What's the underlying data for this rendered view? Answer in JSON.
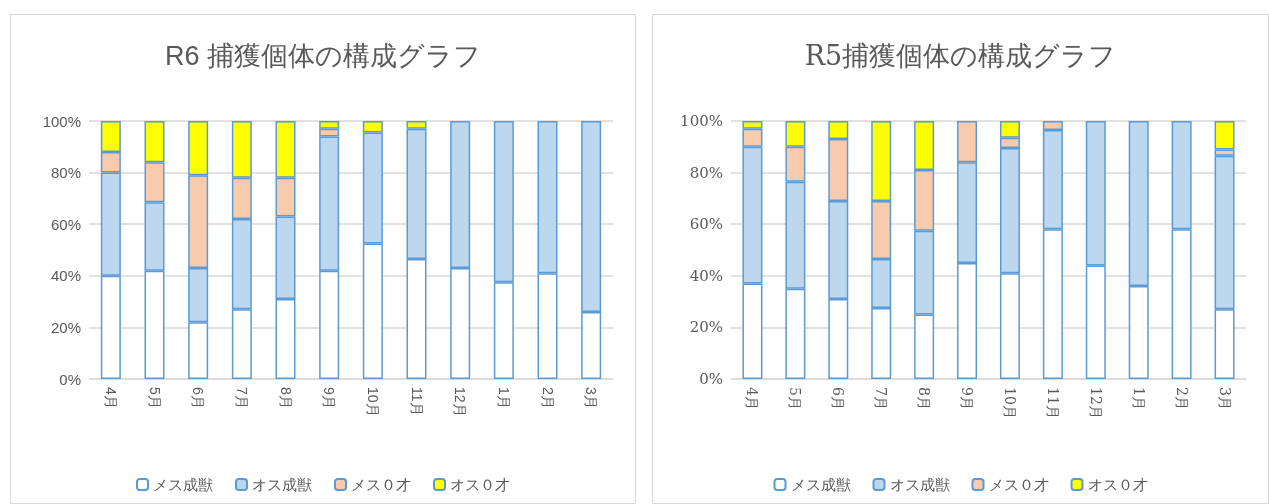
{
  "chart_data": [
    {
      "type": "bar",
      "title": "R6 捕獲個体の構成グラフ",
      "stacked": true,
      "grid": "y",
      "legend": "bottom",
      "categories": [
        "4月",
        "5月",
        "6月",
        "7月",
        "8月",
        "9月",
        "10月",
        "11月",
        "12月",
        "1月",
        "2月",
        "3月"
      ],
      "ylim": [
        0,
        100
      ],
      "yticks": [
        {
          "value": 0,
          "label": "0%"
        },
        {
          "value": 20,
          "label": "20%"
        },
        {
          "value": 40,
          "label": "40%"
        },
        {
          "value": 60,
          "label": "60%"
        },
        {
          "value": 80,
          "label": "80%"
        },
        {
          "value": 100,
          "label": "100%"
        }
      ],
      "series": [
        {
          "name": "メス成獣",
          "color": "#ffffff",
          "values": [
            40,
            42,
            22,
            27,
            31,
            42,
            52.5,
            46.5,
            43,
            37.5,
            41,
            26
          ]
        },
        {
          "name": "オス成獣",
          "color": "#bdd7ee",
          "values": [
            40,
            26.5,
            21,
            35,
            32,
            52,
            43,
            50.5,
            57,
            62.5,
            59,
            74
          ]
        },
        {
          "name": "メス０才",
          "color": "#f8cbad",
          "values": [
            8,
            15.5,
            36,
            16,
            15,
            3,
            0,
            0,
            0,
            0,
            0,
            0
          ]
        },
        {
          "name": "オス０才",
          "color": "#ffff00",
          "values": [
            12,
            16,
            21,
            22,
            22,
            3,
            4.5,
            3,
            0,
            0,
            0,
            0
          ]
        }
      ]
    },
    {
      "type": "bar",
      "title": "R5捕獲個体の構成グラフ",
      "stacked": true,
      "grid": "y",
      "legend": "bottom",
      "categories": [
        "4月",
        "5月",
        "6月",
        "7月",
        "8月",
        "9月",
        "10月",
        "11月",
        "12月",
        "1月",
        "2月",
        "3月"
      ],
      "ylim": [
        0,
        100
      ],
      "yticks": [
        {
          "value": 0,
          "label": "0%"
        },
        {
          "value": 20,
          "label": "20%"
        },
        {
          "value": 40,
          "label": "40%"
        },
        {
          "value": 60,
          "label": "60%"
        },
        {
          "value": 80,
          "label": "80%"
        },
        {
          "value": 100,
          "label": "100%"
        }
      ],
      "series": [
        {
          "name": "メス成獣",
          "color": "#ffffff",
          "values": [
            37,
            35,
            31,
            27.5,
            25,
            45,
            41,
            58,
            44,
            36,
            58,
            27
          ]
        },
        {
          "name": "オス成獣",
          "color": "#bdd7ee",
          "values": [
            53,
            41.5,
            38,
            19,
            32.5,
            39,
            48.5,
            38.5,
            56,
            64,
            42,
            59.5
          ]
        },
        {
          "name": "メス０才",
          "color": "#f8cbad",
          "values": [
            7,
            13.5,
            24,
            22.5,
            23.5,
            16,
            4,
            3.5,
            0,
            0,
            0,
            2.5
          ]
        },
        {
          "name": "オス０才",
          "color": "#ffff00",
          "values": [
            3,
            10,
            7,
            31,
            19,
            0,
            6.5,
            0,
            0,
            0,
            0,
            11
          ]
        }
      ]
    }
  ]
}
